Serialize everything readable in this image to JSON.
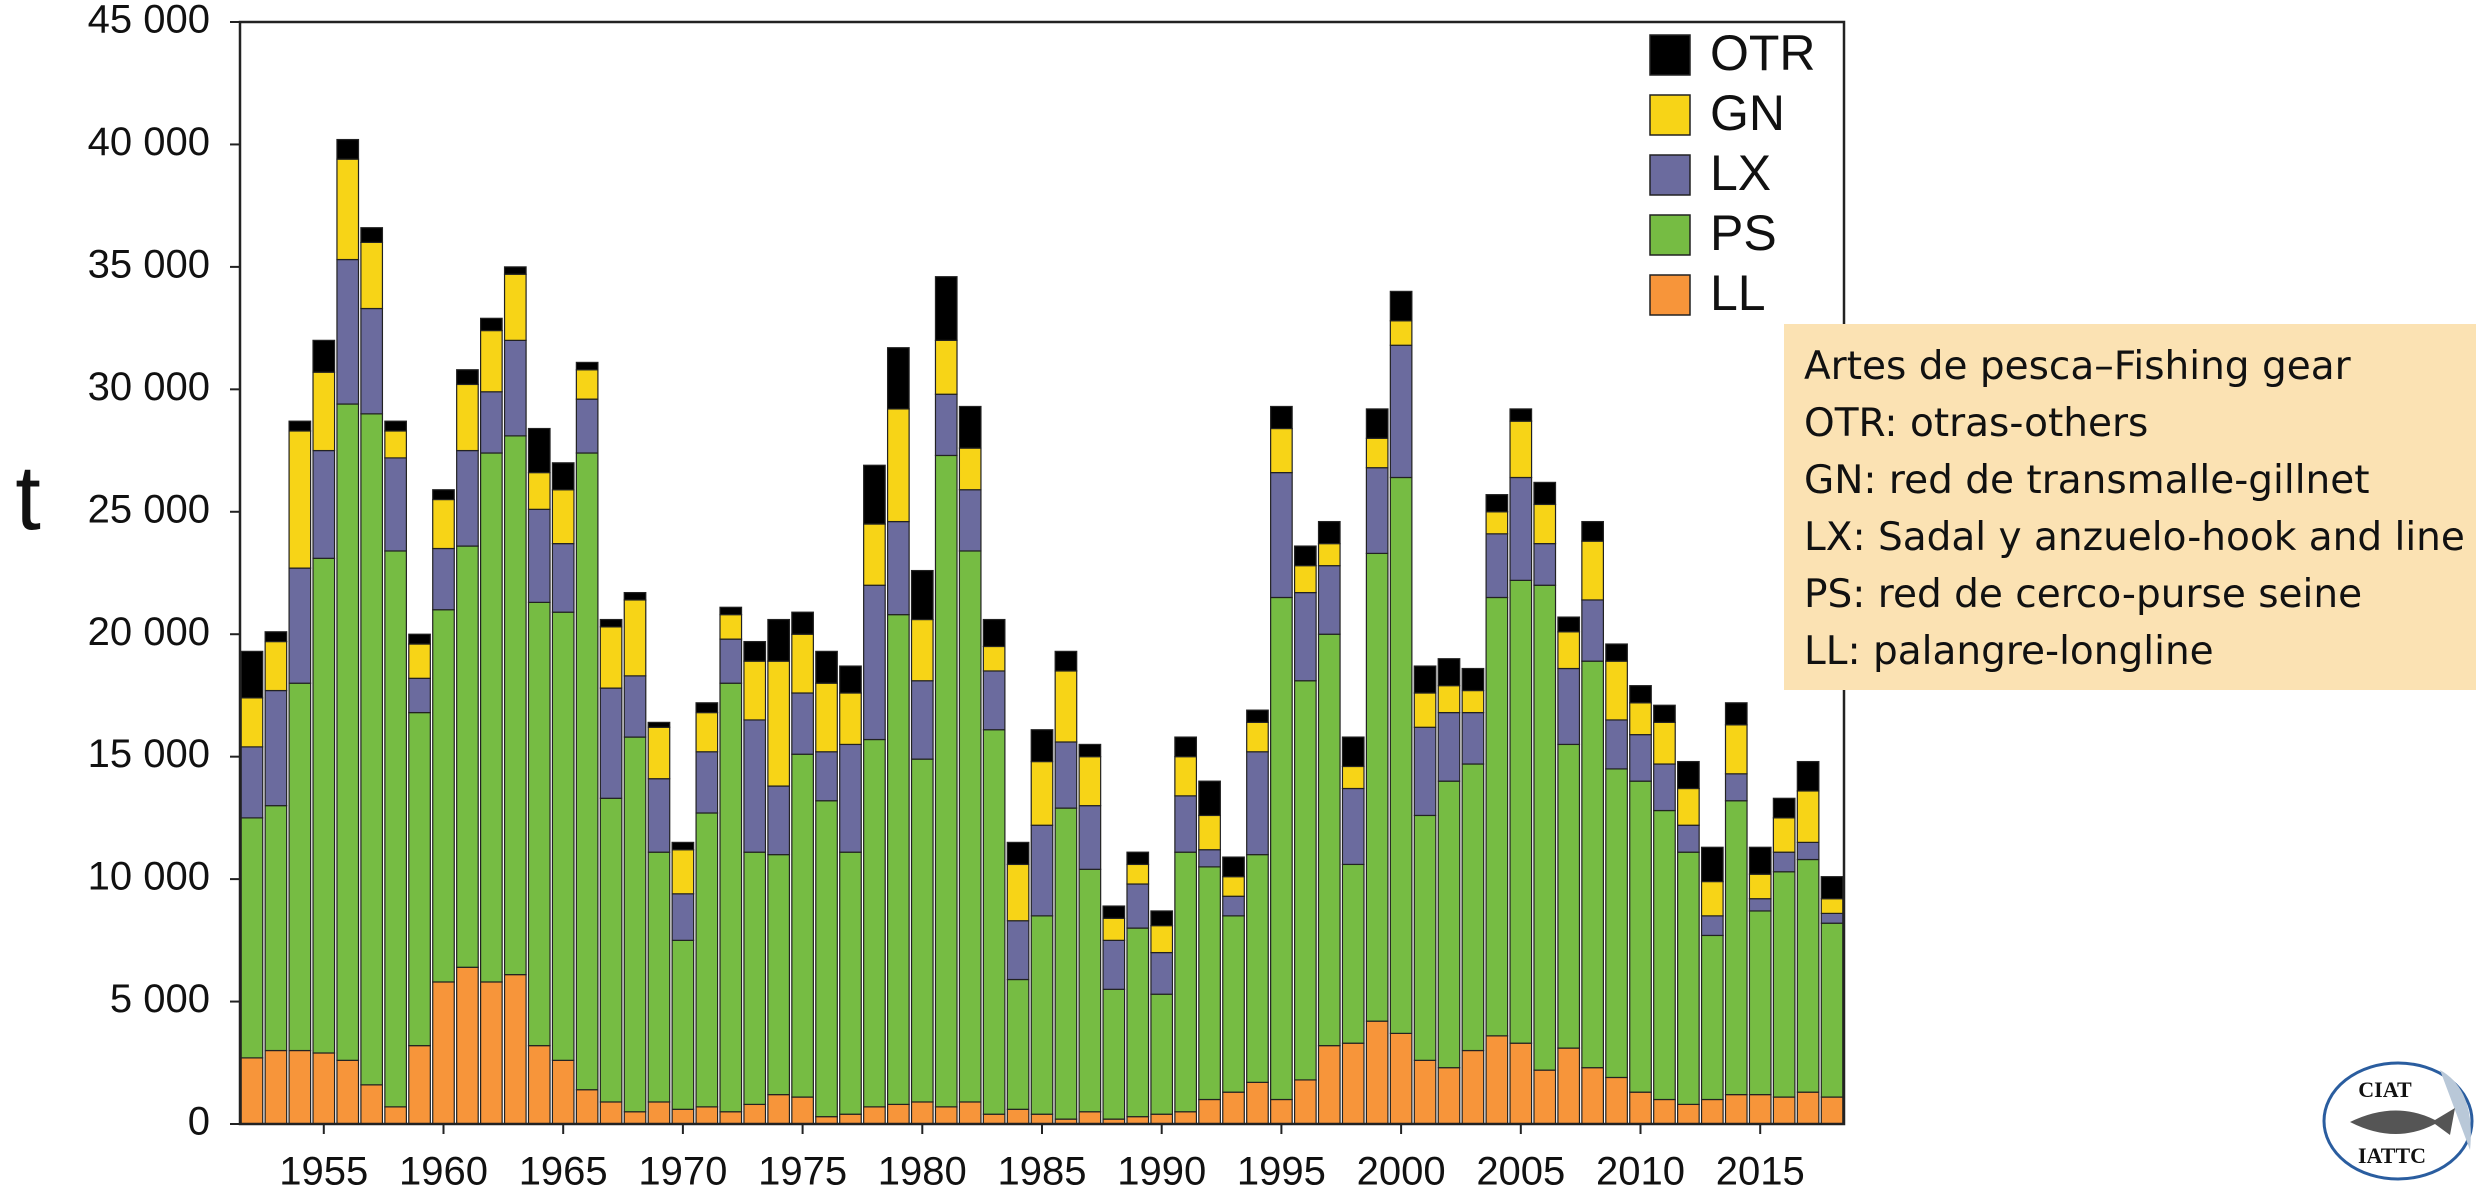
{
  "chart_data": {
    "type": "stacked_bar",
    "ylabel": "t",
    "x": [
      1952,
      1953,
      1954,
      1955,
      1956,
      1957,
      1958,
      1959,
      1960,
      1961,
      1962,
      1963,
      1964,
      1965,
      1966,
      1967,
      1968,
      1969,
      1970,
      1971,
      1972,
      1973,
      1974,
      1975,
      1976,
      1977,
      1978,
      1979,
      1980,
      1981,
      1982,
      1983,
      1984,
      1985,
      1986,
      1987,
      1988,
      1989,
      1990,
      1991,
      1992,
      1993,
      1994,
      1995,
      1996,
      1997,
      1998,
      1999,
      2000,
      2001,
      2002,
      2003,
      2004,
      2005,
      2006,
      2007,
      2008,
      2009,
      2010,
      2011,
      2012,
      2013,
      2014,
      2015,
      2016,
      2017,
      2018
    ],
    "xlim": [
      1951.5,
      2018.5
    ],
    "xticks": [
      1955,
      1960,
      1965,
      1970,
      1975,
      1980,
      1985,
      1990,
      1995,
      2000,
      2005,
      2010,
      2015
    ],
    "ylim": [
      0,
      45000
    ],
    "yticks": [
      0,
      {
        "value": 5000,
        "label": "5 000"
      },
      {
        "value": 10000,
        "label": "10 000"
      },
      {
        "value": 15000,
        "label": "15 000"
      },
      {
        "value": 20000,
        "label": "20 000"
      },
      {
        "value": 25000,
        "label": "25 000"
      },
      {
        "value": 30000,
        "label": "30 000"
      },
      {
        "value": 35000,
        "label": "35 000"
      },
      {
        "value": 40000,
        "label": "40 000"
      },
      {
        "value": 45000,
        "label": "45 000"
      }
    ],
    "series": [
      {
        "name": "LL",
        "color": "#f7953a",
        "values": [
          2700,
          3000,
          3000,
          2900,
          2600,
          1600,
          700,
          3200,
          5800,
          6400,
          5800,
          6100,
          3200,
          2600,
          1400,
          900,
          500,
          900,
          600,
          700,
          500,
          800,
          1200,
          1100,
          300,
          400,
          700,
          800,
          900,
          700,
          900,
          400,
          600,
          400,
          200,
          500,
          200,
          300,
          400,
          500,
          1000,
          1300,
          1700,
          1000,
          1800,
          3200,
          3300,
          4200,
          3700,
          2600,
          2300,
          3000,
          3600,
          3300,
          2200,
          3100,
          2300,
          1900,
          1300,
          1000,
          800,
          1000,
          1200,
          1200,
          1100,
          1300,
          1100
        ]
      },
      {
        "name": "PS",
        "color": "#76bc43",
        "values": [
          9800,
          10000,
          15000,
          20200,
          26800,
          27400,
          22700,
          13600,
          15200,
          17200,
          21600,
          22000,
          18100,
          18300,
          26000,
          12400,
          15300,
          10200,
          6900,
          12000,
          17500,
          10300,
          9800,
          14000,
          12900,
          10700,
          15000,
          20000,
          14000,
          26600,
          22500,
          15700,
          5300,
          8100,
          12700,
          9900,
          5300,
          7700,
          4900,
          10600,
          9500,
          7200,
          9300,
          20500,
          16300,
          16800,
          7300,
          19100,
          22700,
          10000,
          11700,
          11700,
          17900,
          18900,
          19800,
          12400,
          16600,
          12600,
          12700,
          11800,
          10300,
          6700,
          12000,
          7500,
          9200,
          9500,
          7100
        ]
      },
      {
        "name": "LX",
        "color": "#6b6b9e",
        "values": [
          2900,
          4700,
          4700,
          4400,
          5900,
          4300,
          3800,
          1400,
          2500,
          3900,
          2500,
          3900,
          3800,
          2800,
          2200,
          4500,
          2500,
          3000,
          1900,
          2500,
          1800,
          5400,
          2800,
          2500,
          2000,
          4400,
          6300,
          3800,
          3200,
          2500,
          2500,
          2400,
          2400,
          3700,
          2700,
          2600,
          2000,
          1800,
          1700,
          2300,
          700,
          800,
          4200,
          5100,
          3600,
          2800,
          3100,
          3500,
          5400,
          3600,
          2800,
          2100,
          2600,
          4200,
          1700,
          3100,
          2500,
          2000,
          1900,
          1900,
          1100,
          800,
          1100,
          500,
          800,
          700,
          400
        ]
      },
      {
        "name": "GN",
        "color": "#f7d417",
        "values": [
          2000,
          2000,
          5600,
          3200,
          4100,
          2700,
          1100,
          1400,
          2000,
          2700,
          2500,
          2700,
          1500,
          2200,
          1200,
          2500,
          3100,
          2100,
          1800,
          1600,
          1000,
          2400,
          5100,
          2400,
          2800,
          2100,
          2500,
          4600,
          2500,
          2200,
          1700,
          1000,
          2300,
          2600,
          2900,
          2000,
          900,
          800,
          1100,
          1600,
          1400,
          800,
          1200,
          1800,
          1100,
          900,
          900,
          1200,
          1000,
          1400,
          1100,
          900,
          900,
          2300,
          1600,
          1500,
          2400,
          2400,
          1300,
          1700,
          1500,
          1400,
          2000,
          1000,
          1400,
          2100,
          600
        ]
      },
      {
        "name": "OTR",
        "color": "#000000",
        "values": [
          1900,
          400,
          400,
          1300,
          800,
          600,
          400,
          400,
          400,
          600,
          500,
          300,
          1800,
          1100,
          300,
          300,
          300,
          200,
          300,
          400,
          300,
          800,
          1700,
          900,
          1300,
          1100,
          2400,
          2500,
          2000,
          2600,
          1700,
          1100,
          900,
          1300,
          800,
          500,
          500,
          500,
          600,
          800,
          1400,
          800,
          500,
          900,
          800,
          900,
          1200,
          1200,
          1200,
          1100,
          1100,
          900,
          700,
          500,
          900,
          600,
          800,
          700,
          700,
          700,
          1100,
          1400,
          900,
          1100,
          800,
          1200,
          900
        ]
      }
    ],
    "annotations": [
      "Artes de pesca–Fishing gear",
      "OTR: otras-others",
      "GN: red de transmalle-gillnet",
      "LX: Sadal y anzuelo-hook and line",
      "PS: red de cerco-purse seine",
      "LL: palangre-longline"
    ],
    "logo": [
      "CIAT",
      "IATTC"
    ]
  }
}
